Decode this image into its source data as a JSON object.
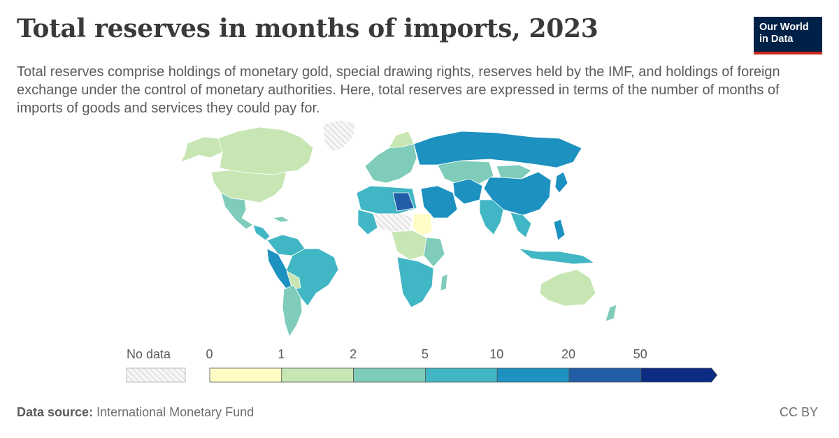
{
  "header": {
    "title": "Total reserves in months of imports, 2023",
    "subtitle": "Total reserves comprise holdings of monetary gold, special drawing rights, reserves held by the IMF, and holdings of foreign exchange under the control of monetary authorities. Here, total reserves are expressed in terms of the number of months of imports of goods and services they could pay for.",
    "logo_line1": "Our World",
    "logo_line2": "in Data"
  },
  "legend": {
    "no_data_label": "No data",
    "ticks": [
      "0",
      "1",
      "2",
      "5",
      "10",
      "20",
      "50"
    ],
    "colors": [
      "#fffdc5",
      "#c7e6b3",
      "#7fccbb",
      "#41b6c4",
      "#1d91c0",
      "#225ea8",
      "#0c2c84"
    ]
  },
  "footer": {
    "source_label": "Data source:",
    "source_value": "International Monetary Fund",
    "license": "CC BY"
  }
}
